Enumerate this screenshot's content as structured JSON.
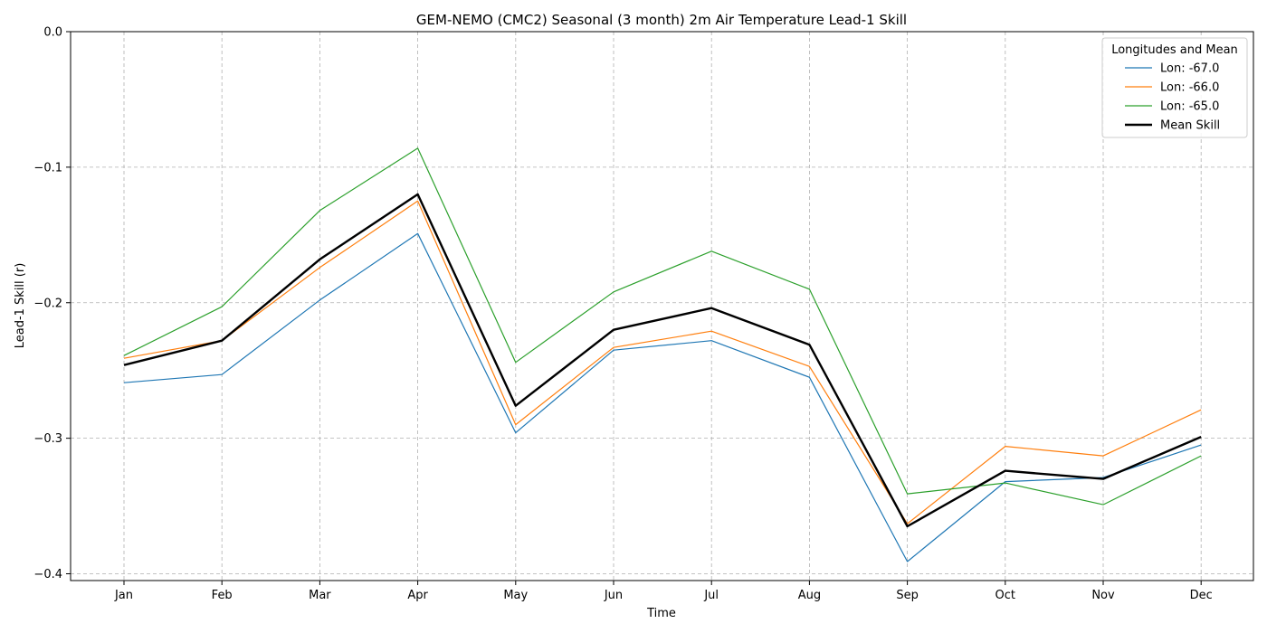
{
  "chart_data": {
    "type": "line",
    "title": "GEM-NEMO (CMC2) Seasonal (3 month) 2m Air Temperature Lead-1 Skill",
    "xlabel": "Time",
    "ylabel": "Lead-1 Skill (r)",
    "categories": [
      "Jan",
      "Feb",
      "Mar",
      "Apr",
      "May",
      "Jun",
      "Jul",
      "Aug",
      "Sep",
      "Oct",
      "Nov",
      "Dec"
    ],
    "ylim": [
      -0.405,
      0.0
    ],
    "yticks": [
      0.0,
      -0.1,
      -0.2,
      -0.3,
      -0.4
    ],
    "ytick_labels": [
      "0.0",
      "−0.1",
      "−0.2",
      "−0.3",
      "−0.4"
    ],
    "grid": true,
    "legend": {
      "title": "Longitudes and Mean",
      "position": "top-right"
    },
    "series": [
      {
        "name": "Lon: -67.0",
        "color": "#1f77b4",
        "width": 1.2,
        "values": [
          -0.259,
          -0.253,
          -0.198,
          -0.149,
          -0.296,
          -0.235,
          -0.228,
          -0.255,
          -0.391,
          -0.332,
          -0.329,
          -0.305
        ]
      },
      {
        "name": "Lon: -66.0",
        "color": "#ff7f0e",
        "width": 1.2,
        "values": [
          -0.241,
          -0.228,
          -0.174,
          -0.125,
          -0.29,
          -0.233,
          -0.221,
          -0.247,
          -0.363,
          -0.306,
          -0.313,
          -0.279
        ]
      },
      {
        "name": "Lon: -65.0",
        "color": "#2ca02c",
        "width": 1.2,
        "values": [
          -0.239,
          -0.203,
          -0.132,
          -0.086,
          -0.244,
          -0.192,
          -0.162,
          -0.19,
          -0.341,
          -0.333,
          -0.349,
          -0.313
        ]
      },
      {
        "name": "Mean Skill",
        "color": "#000000",
        "width": 2.4,
        "values": [
          -0.246,
          -0.228,
          -0.168,
          -0.12,
          -0.276,
          -0.22,
          -0.204,
          -0.231,
          -0.365,
          -0.324,
          -0.33,
          -0.299
        ]
      }
    ]
  }
}
